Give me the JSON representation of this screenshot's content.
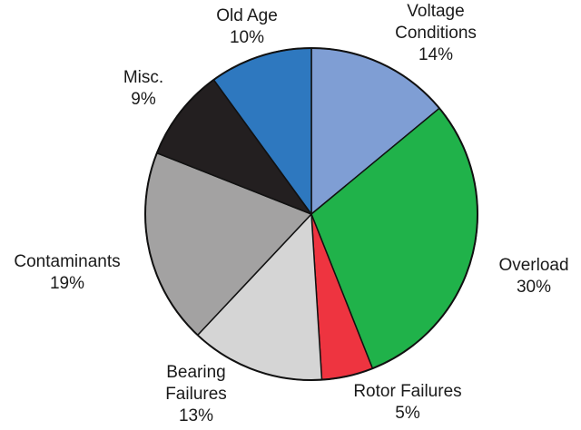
{
  "chart_data": {
    "type": "pie",
    "title": "",
    "start_angle_deg": 0,
    "direction": "clockwise",
    "legend": "none",
    "slices": [
      {
        "label_lines": [
          "Voltage",
          "Conditions"
        ],
        "value": 14,
        "value_label": "14%",
        "color": "#7f9ed4"
      },
      {
        "label_lines": [
          "Overload"
        ],
        "value": 30,
        "value_label": "30%",
        "color": "#20b24a"
      },
      {
        "label_lines": [
          "Rotor Failures"
        ],
        "value": 5,
        "value_label": "5%",
        "color": "#ee3440"
      },
      {
        "label_lines": [
          "Bearing",
          "Failures"
        ],
        "value": 13,
        "value_label": "13%",
        "color": "#d5d5d5"
      },
      {
        "label_lines": [
          "Contaminants"
        ],
        "value": 19,
        "value_label": "19%",
        "color": "#a3a2a2"
      },
      {
        "label_lines": [
          "Misc."
        ],
        "value": 9,
        "value_label": "9%",
        "color": "#231f20"
      },
      {
        "label_lines": [
          "Old Age"
        ],
        "value": 10,
        "value_label": "10%",
        "color": "#2e78bf"
      }
    ]
  }
}
